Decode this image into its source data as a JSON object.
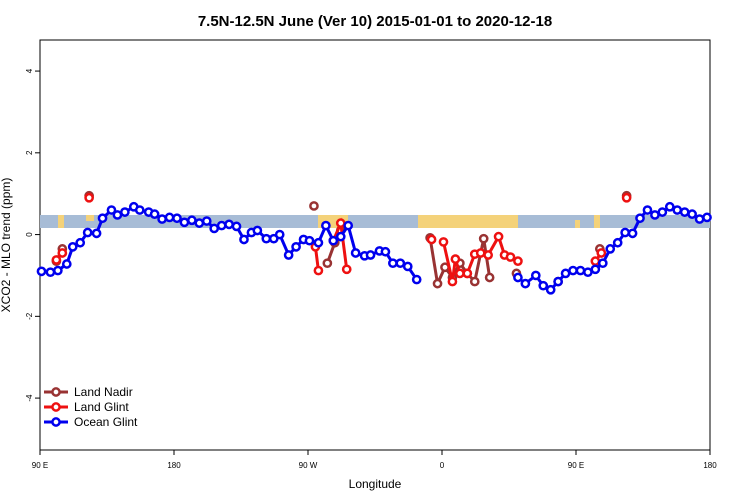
{
  "chart_data": {
    "type": "line",
    "title": "7.5N-12.5N June (Ver 10)   2015-01-01 to 2020-12-18",
    "x_label": "Longitude",
    "y_label": "XCO2 - MLO trend (ppm)",
    "xlim": [
      90,
      540
    ],
    "xticks": [
      {
        "value": 90,
        "label": "90 E"
      },
      180,
      {
        "value": 270,
        "label": "90 W"
      },
      {
        "value": 360,
        "label": "0"
      },
      {
        "value": 450,
        "label": "90 E"
      },
      {
        "value": 540,
        "label": "180"
      }
    ],
    "ylim": [
      -5.27,
      4.76
    ],
    "yticks": [
      -4,
      -2,
      0,
      2,
      4
    ],
    "legend": "bottom-left",
    "series": [
      {
        "name": "Land Nadir",
        "color": "#993333",
        "x": [
          101,
          105,
          114,
          123,
          200,
          274,
          278,
          283,
          288,
          292,
          320,
          352,
          357,
          362,
          367,
          372,
          377,
          382,
          388,
          392,
          400,
          410,
          420,
          438,
          450,
          466,
          475,
          484
        ],
        "values": [
          -0.65,
          -0.35,
          null,
          0.95,
          null,
          0.7,
          null,
          -0.7,
          -0.2,
          0.1,
          null,
          -0.08,
          -1.2,
          -0.8,
          -1.05,
          -0.7,
          -0.95,
          -1.15,
          -0.1,
          -1.05,
          null,
          -0.95,
          null,
          -1.15,
          null,
          -0.35,
          null,
          0.95
        ]
      },
      {
        "name": "Land Glint",
        "color": "#ee1111",
        "x": [
          101,
          105,
          114,
          123,
          200,
          275,
          277,
          282,
          287,
          292,
          296,
          320,
          353,
          357,
          361,
          367,
          369,
          372,
          377,
          382,
          386,
          391,
          398,
          402,
          406,
          411,
          440,
          463,
          467,
          475,
          484
        ],
        "values": [
          -0.62,
          -0.45,
          null,
          0.9,
          null,
          -0.3,
          -0.88,
          null,
          -0.15,
          0.28,
          -0.85,
          null,
          -0.12,
          null,
          -0.18,
          -1.15,
          -0.6,
          -0.95,
          -0.95,
          -0.48,
          -0.45,
          -0.5,
          -0.05,
          -0.5,
          -0.55,
          -0.65,
          null,
          -0.65,
          -0.45,
          null,
          0.9
        ]
      },
      {
        "name": "Ocean Glint",
        "color": "#0000ee",
        "x": [
          91,
          97,
          102,
          108,
          112,
          117,
          122,
          128,
          132,
          138,
          142,
          147,
          153,
          157,
          163,
          167,
          172,
          177,
          182,
          187,
          192,
          197,
          202,
          207,
          212,
          217,
          222,
          227,
          232,
          236,
          242,
          247,
          251,
          257,
          262,
          267,
          271,
          277,
          282,
          287,
          292,
          297,
          302,
          308,
          312,
          318,
          322,
          327,
          332,
          337,
          343,
          380,
          411,
          416,
          423,
          428,
          433,
          438,
          443,
          448,
          453,
          458,
          463,
          468,
          473,
          478,
          483,
          488,
          493,
          498,
          503,
          508,
          513,
          518,
          523,
          528,
          533,
          538
        ],
        "values": [
          -0.9,
          -0.92,
          -0.88,
          -0.72,
          -0.3,
          -0.2,
          0.05,
          0.03,
          0.4,
          0.6,
          0.48,
          0.55,
          0.68,
          0.6,
          0.55,
          0.5,
          0.38,
          0.42,
          0.4,
          0.3,
          0.35,
          0.28,
          0.33,
          0.15,
          0.22,
          0.25,
          0.2,
          -0.12,
          0.05,
          0.1,
          -0.1,
          -0.1,
          0.0,
          -0.5,
          -0.3,
          -0.12,
          -0.15,
          -0.2,
          0.22,
          -0.15,
          -0.05,
          0.22,
          -0.45,
          -0.52,
          -0.5,
          -0.4,
          -0.42,
          -0.7,
          -0.7,
          -0.78,
          -1.1,
          null,
          -1.05,
          -1.2,
          -1.0,
          -1.25,
          -1.35,
          -1.15,
          -0.95,
          -0.88,
          -0.88,
          -0.92,
          -0.85,
          -0.7,
          -0.35,
          -0.2,
          0.05,
          0.03,
          0.4,
          0.6,
          0.48,
          0.55,
          0.68,
          0.6,
          0.55,
          0.5,
          0.38,
          0.42
        ]
      }
    ]
  }
}
